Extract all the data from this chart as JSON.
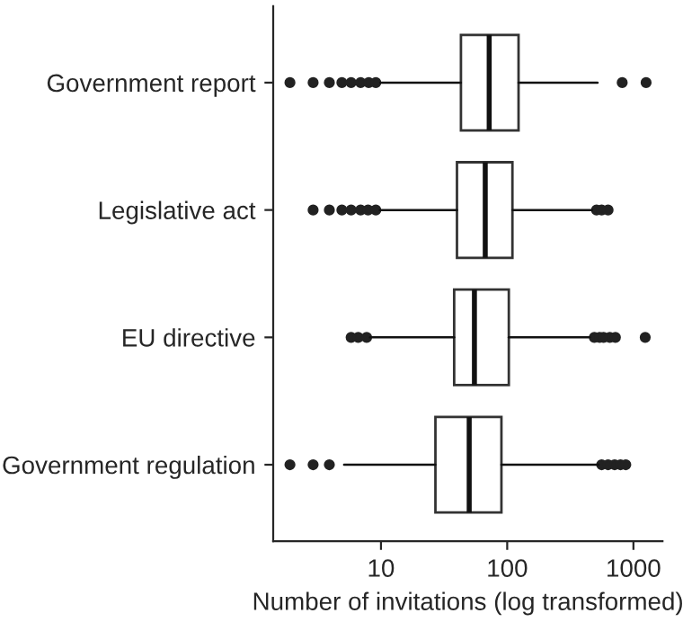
{
  "chart_data": {
    "type": "box",
    "orientation": "horizontal",
    "log": "x",
    "xlabel": "Number of invitations (log transformed)",
    "categories": [
      "Government report",
      "Legislative act",
      "EU directive",
      "Government regulation"
    ],
    "boxes": [
      {
        "low": 9.9,
        "q1": 43,
        "median": 72,
        "q3": 123,
        "high": 520,
        "outliers": [
          1.9,
          2.9,
          3.9,
          4.9,
          5.8,
          6.9,
          8,
          9.1,
          815,
          1260
        ]
      },
      {
        "low": 9.8,
        "q1": 40,
        "median": 67,
        "q3": 110,
        "high": 470,
        "outliers": [
          2.9,
          3.9,
          4.9,
          5.8,
          6.9,
          7.9,
          9.1,
          510,
          560,
          630
        ]
      },
      {
        "low": 8.2,
        "q1": 38,
        "median": 55,
        "q3": 103,
        "high": 450,
        "outliers": [
          5.8,
          6.6,
          7.7,
          490,
          540,
          580,
          650,
          720,
          1240
        ]
      },
      {
        "low": 5.1,
        "q1": 27,
        "median": 50,
        "q3": 90,
        "high": 530,
        "outliers": [
          1.9,
          2.9,
          3.9,
          560,
          630,
          710,
          790,
          870
        ]
      }
    ],
    "xlim": [
      1.4,
      1700
    ],
    "xticks": [
      10,
      100,
      1000
    ],
    "grid": false,
    "legend": false
  }
}
